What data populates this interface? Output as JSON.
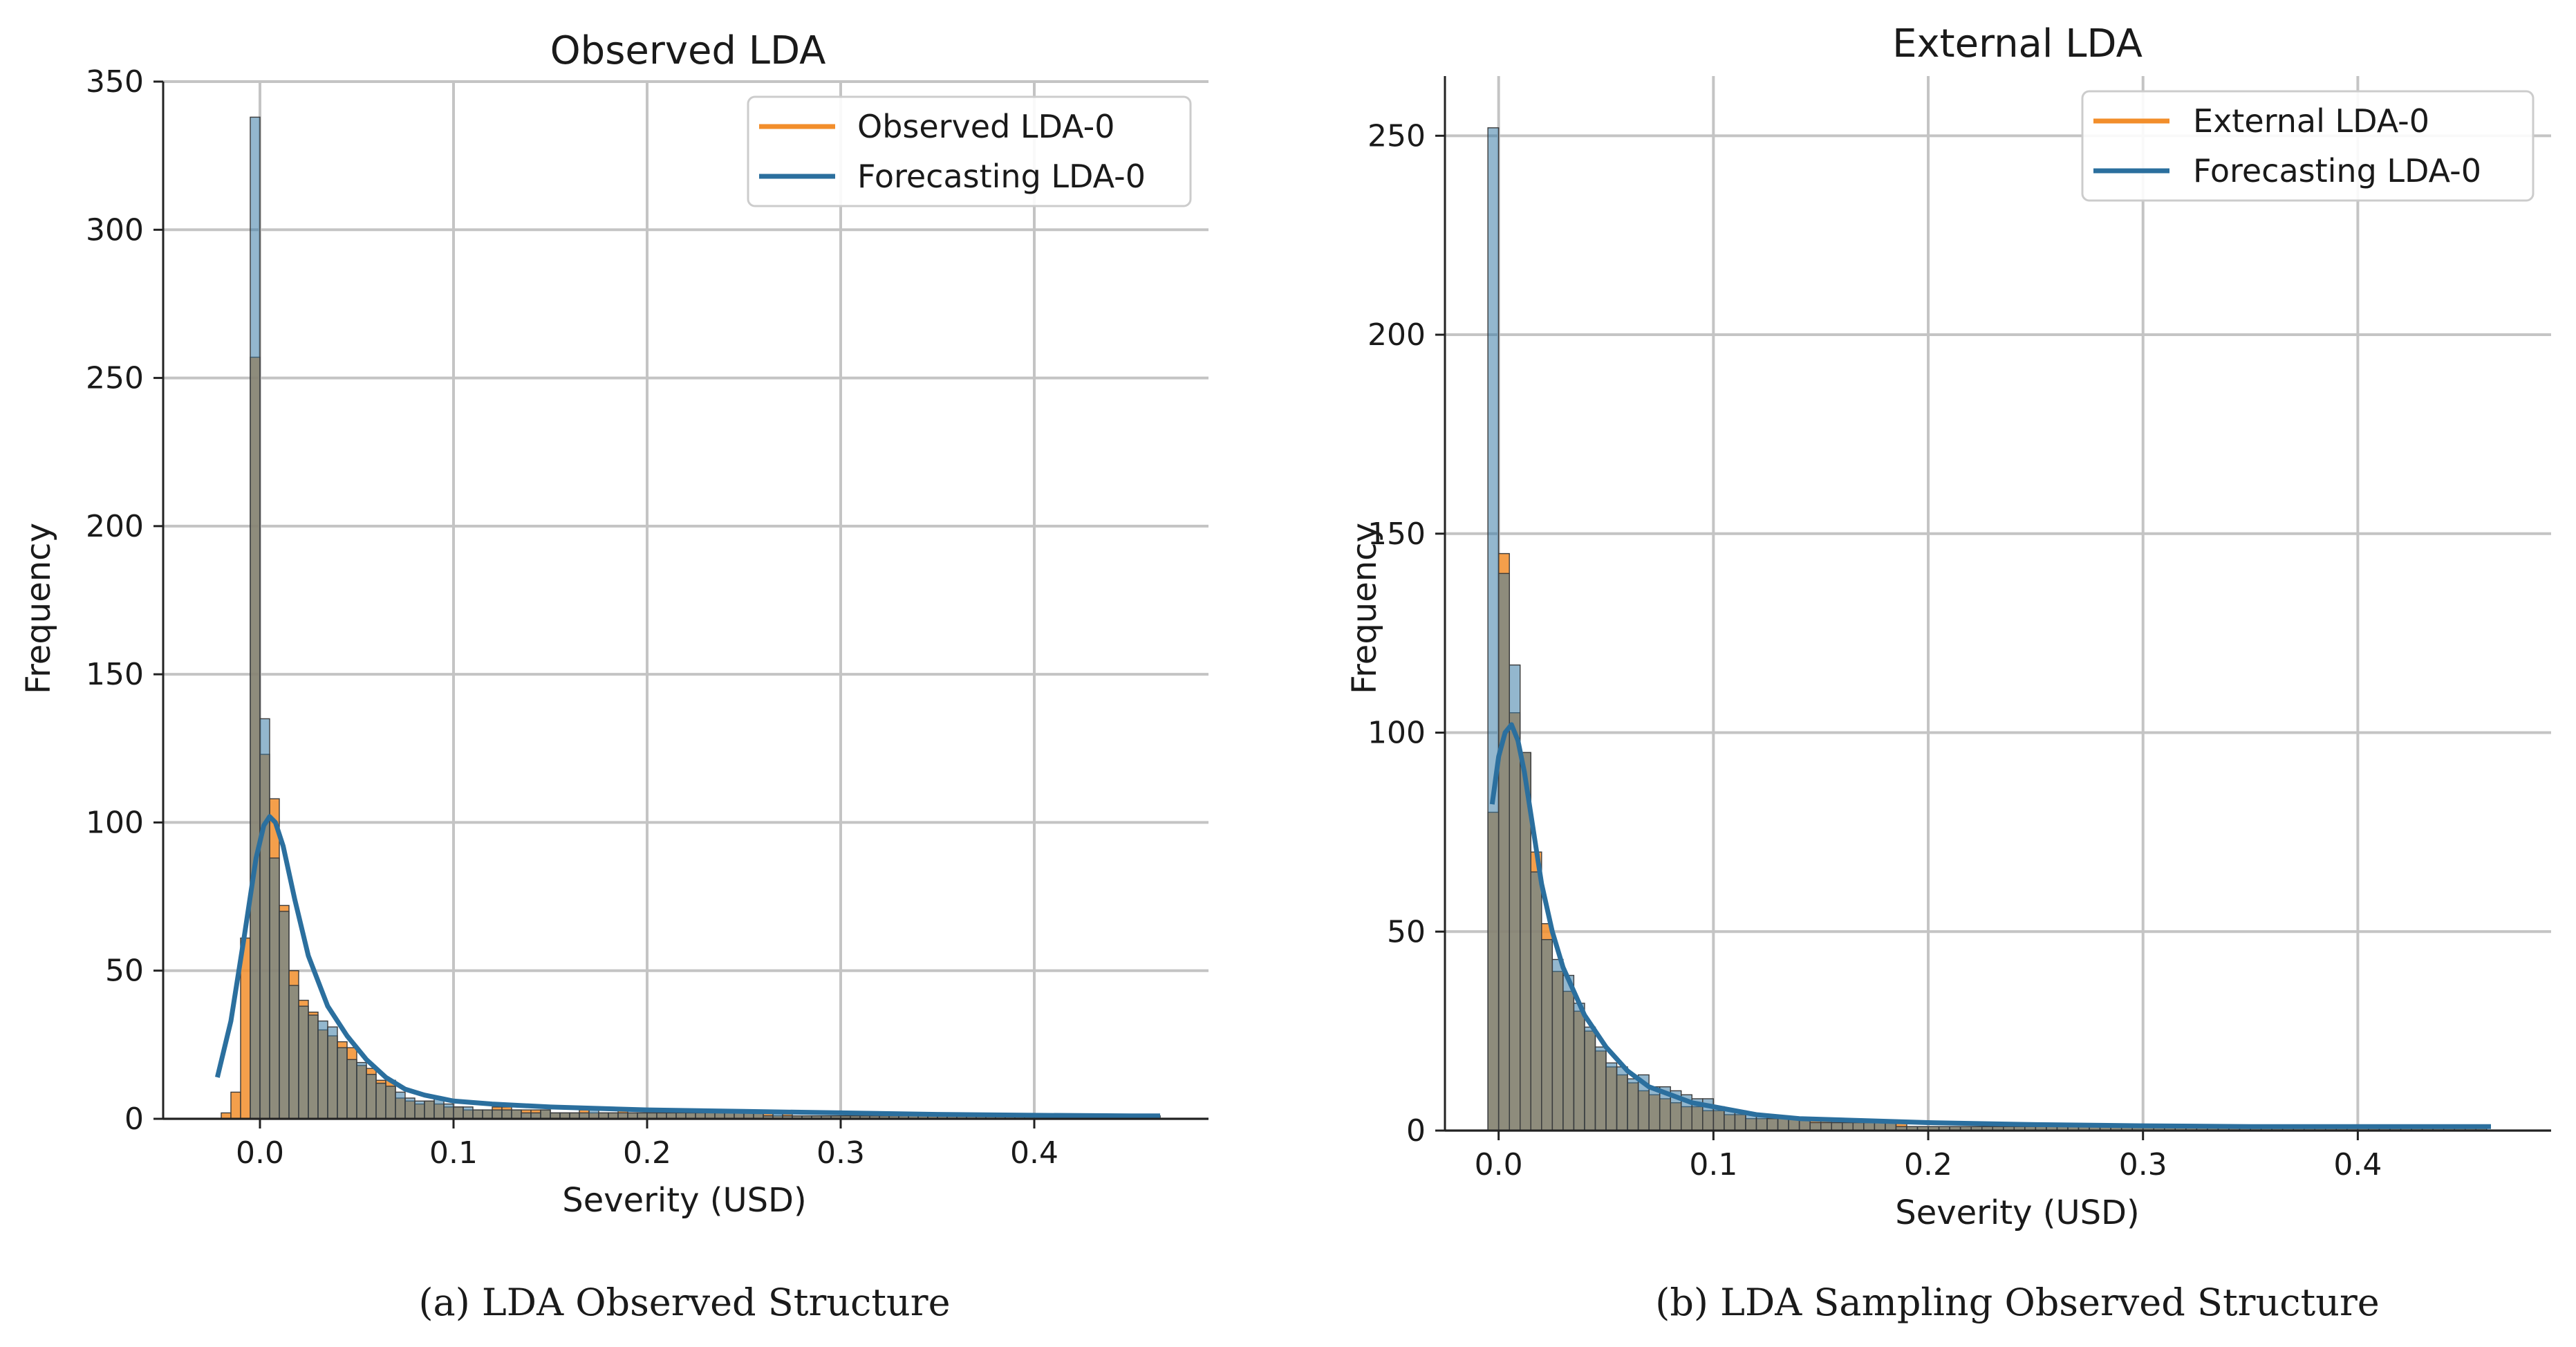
{
  "colors": {
    "observed": "#f28e2b",
    "forecast": "#3a7ca5",
    "kde": "#2b6f9e"
  },
  "chart_data": [
    {
      "type": "histogram",
      "title": "Observed LDA",
      "xlabel": "Severity (USD)",
      "ylabel": "Frequency",
      "xlim": [
        -0.05,
        0.49
      ],
      "ylim": [
        0,
        350
      ],
      "xticks": [
        0.0,
        0.1,
        0.2,
        0.3,
        0.4
      ],
      "xtick_labels": [
        "0.0",
        "0.1",
        "0.2",
        "0.3",
        "0.4"
      ],
      "yticks": [
        0,
        50,
        100,
        150,
        200,
        250,
        300,
        350
      ],
      "ytick_labels": [
        "0",
        "50",
        "100",
        "150",
        "200",
        "250",
        "300",
        "350"
      ],
      "caption": "(a) LDA Observed Structure",
      "legend": {
        "location": "top-right",
        "entries": [
          "Observed LDA-0",
          "Forecasting LDA-0"
        ]
      },
      "bin_width": 0.005,
      "bins_start": -0.02,
      "series": [
        {
          "name": "Observed LDA-0",
          "values": [
            2,
            9,
            61,
            257,
            123,
            108,
            72,
            50,
            40,
            36,
            30,
            28,
            26,
            24,
            18,
            17,
            13,
            13,
            7,
            6,
            5,
            6,
            5,
            4,
            4,
            3,
            3,
            3,
            4,
            4,
            3,
            3,
            3,
            3,
            2,
            2,
            2,
            3,
            2,
            2,
            2,
            3,
            2,
            2,
            2,
            2,
            2,
            3,
            2,
            2,
            3,
            2,
            2,
            2,
            2,
            2,
            2,
            1,
            2,
            1,
            1,
            1,
            1,
            1,
            1,
            1,
            1,
            1,
            1,
            1,
            1,
            1,
            1,
            1,
            1,
            1,
            1,
            1,
            1,
            1,
            1,
            1,
            1,
            1,
            1,
            1,
            1,
            1,
            1,
            1,
            1,
            1,
            1,
            1,
            1,
            1,
            1
          ]
        },
        {
          "name": "Forecasting LDA-0",
          "values": [
            0,
            0,
            0,
            338,
            135,
            88,
            70,
            45,
            38,
            35,
            33,
            31,
            24,
            20,
            19,
            15,
            12,
            11,
            9,
            7,
            6,
            6,
            7,
            5,
            4,
            4,
            3,
            3,
            3,
            3,
            3,
            2,
            2,
            3,
            2,
            2,
            2,
            2,
            3,
            2,
            2,
            2,
            2,
            2,
            2,
            2,
            2,
            2,
            2,
            2,
            2,
            2,
            2,
            2,
            2,
            2,
            1,
            2,
            1,
            1,
            1,
            1,
            1,
            1,
            1,
            1,
            1,
            1,
            1,
            1,
            1,
            1,
            1,
            1,
            1,
            1,
            1,
            1,
            1,
            1,
            1,
            1,
            1,
            1,
            1,
            1,
            1,
            1,
            1,
            1,
            1,
            1,
            1,
            1,
            1,
            1,
            1
          ]
        }
      ],
      "kde": {
        "x": [
          -0.022,
          -0.015,
          -0.008,
          -0.002,
          0.002,
          0.005,
          0.008,
          0.012,
          0.018,
          0.025,
          0.035,
          0.045,
          0.055,
          0.065,
          0.075,
          0.085,
          0.1,
          0.12,
          0.15,
          0.2,
          0.25,
          0.3,
          0.35,
          0.4,
          0.45,
          0.465
        ],
        "y": [
          14,
          33,
          62,
          88,
          99,
          102,
          100,
          92,
          74,
          55,
          38,
          28,
          20,
          14,
          10,
          8,
          6,
          5,
          4,
          3,
          2.5,
          2,
          1.5,
          1.2,
          1,
          1
        ]
      }
    },
    {
      "type": "histogram",
      "title": "External LDA",
      "xlabel": "Severity (USD)",
      "ylabel": "Frequency",
      "xlim": [
        -0.025,
        0.49
      ],
      "ylim": [
        0,
        265
      ],
      "xticks": [
        0.0,
        0.1,
        0.2,
        0.3,
        0.4
      ],
      "xtick_labels": [
        "0.0",
        "0.1",
        "0.2",
        "0.3",
        "0.4"
      ],
      "yticks": [
        0,
        50,
        100,
        150,
        200,
        250
      ],
      "ytick_labels": [
        "0",
        "50",
        "100",
        "150",
        "200",
        "250"
      ],
      "caption": "(b) LDA Sampling Observed Structure",
      "legend": {
        "location": "top-right",
        "entries": [
          "External LDA-0",
          "Forecasting LDA-0"
        ]
      },
      "bin_width": 0.005,
      "bins_start": -0.005,
      "series": [
        {
          "name": "External LDA-0",
          "values": [
            80,
            145,
            105,
            95,
            70,
            52,
            40,
            35,
            30,
            25,
            20,
            16,
            14,
            12,
            10,
            9,
            8,
            7,
            6,
            6,
            5,
            5,
            4,
            4,
            3,
            3,
            3,
            3,
            3,
            3,
            3,
            3,
            2,
            2,
            2,
            2,
            2,
            2,
            2,
            1,
            1,
            1,
            1,
            1,
            1,
            1,
            1,
            1,
            1,
            1,
            1,
            1,
            1,
            1,
            1,
            1,
            1,
            1,
            1,
            1,
            1,
            1,
            1,
            1,
            1,
            1,
            1,
            1,
            1,
            1,
            1,
            1,
            1,
            1,
            1,
            1,
            1,
            1,
            1,
            1,
            1,
            1,
            1,
            1,
            1,
            1,
            1,
            1,
            1,
            1,
            1,
            1,
            1
          ]
        },
        {
          "name": "Forecasting LDA-0",
          "values": [
            252,
            140,
            117,
            95,
            65,
            48,
            43,
            39,
            32,
            26,
            21,
            17,
            16,
            13,
            14,
            11,
            11,
            10,
            9,
            8,
            8,
            6,
            5,
            5,
            4,
            4,
            3,
            3,
            3,
            3,
            2,
            2,
            2,
            2,
            2,
            2,
            2,
            2,
            1,
            1,
            1,
            1,
            1,
            1,
            1,
            1,
            1,
            1,
            1,
            1,
            1,
            1,
            1,
            1,
            1,
            1,
            1,
            1,
            1,
            1,
            1,
            1,
            1,
            1,
            1,
            1,
            1,
            1,
            1,
            1,
            1,
            1,
            1,
            1,
            1,
            1,
            1,
            1,
            1,
            1,
            1,
            1,
            1,
            1,
            1,
            1,
            1,
            1,
            1,
            1,
            1,
            1,
            1
          ]
        }
      ],
      "kde": {
        "x": [
          -0.003,
          0.0,
          0.003,
          0.006,
          0.009,
          0.012,
          0.016,
          0.02,
          0.025,
          0.03,
          0.04,
          0.05,
          0.06,
          0.07,
          0.08,
          0.09,
          0.1,
          0.12,
          0.14,
          0.17,
          0.2,
          0.25,
          0.3,
          0.35,
          0.4,
          0.45,
          0.462
        ],
        "y": [
          82,
          94,
          100,
          102,
          98,
          90,
          76,
          62,
          50,
          41,
          29,
          21,
          15,
          11,
          9,
          7,
          6,
          4,
          3,
          2.5,
          2,
          1.5,
          1.2,
          1,
          1,
          1,
          1
        ]
      }
    }
  ]
}
